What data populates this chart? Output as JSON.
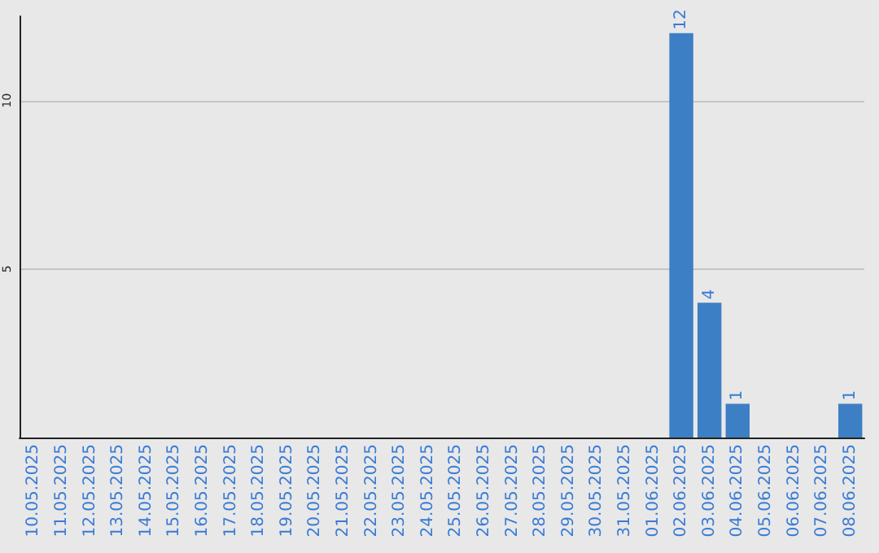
{
  "chart_data": {
    "type": "bar",
    "categories": [
      "10.05.2025",
      "11.05.2025",
      "12.05.2025",
      "13.05.2025",
      "14.05.2025",
      "15.05.2025",
      "16.05.2025",
      "17.05.2025",
      "18.05.2025",
      "19.05.2025",
      "20.05.2025",
      "21.05.2025",
      "22.05.2025",
      "23.05.2025",
      "24.05.2025",
      "25.05.2025",
      "26.05.2025",
      "27.05.2025",
      "28.05.2025",
      "29.05.2025",
      "30.05.2025",
      "31.05.2025",
      "01.06.2025",
      "02.06.2025",
      "03.06.2025",
      "04.06.2025",
      "05.06.2025",
      "06.06.2025",
      "07.06.2025",
      "08.06.2025"
    ],
    "values": [
      0,
      0,
      0,
      0,
      0,
      0,
      0,
      0,
      0,
      0,
      0,
      0,
      0,
      0,
      0,
      0,
      0,
      0,
      0,
      0,
      0,
      0,
      0,
      12,
      4,
      1,
      0,
      0,
      0,
      1
    ],
    "value_labels": [
      null,
      null,
      null,
      null,
      null,
      null,
      null,
      null,
      null,
      null,
      null,
      null,
      null,
      null,
      null,
      null,
      null,
      null,
      null,
      null,
      null,
      null,
      null,
      "12",
      "4",
      "1",
      null,
      null,
      null,
      "1"
    ],
    "color": "#3d7fc4",
    "ylim": [
      0,
      12.5
    ],
    "yticks": [
      5,
      10
    ],
    "grid": "y"
  }
}
